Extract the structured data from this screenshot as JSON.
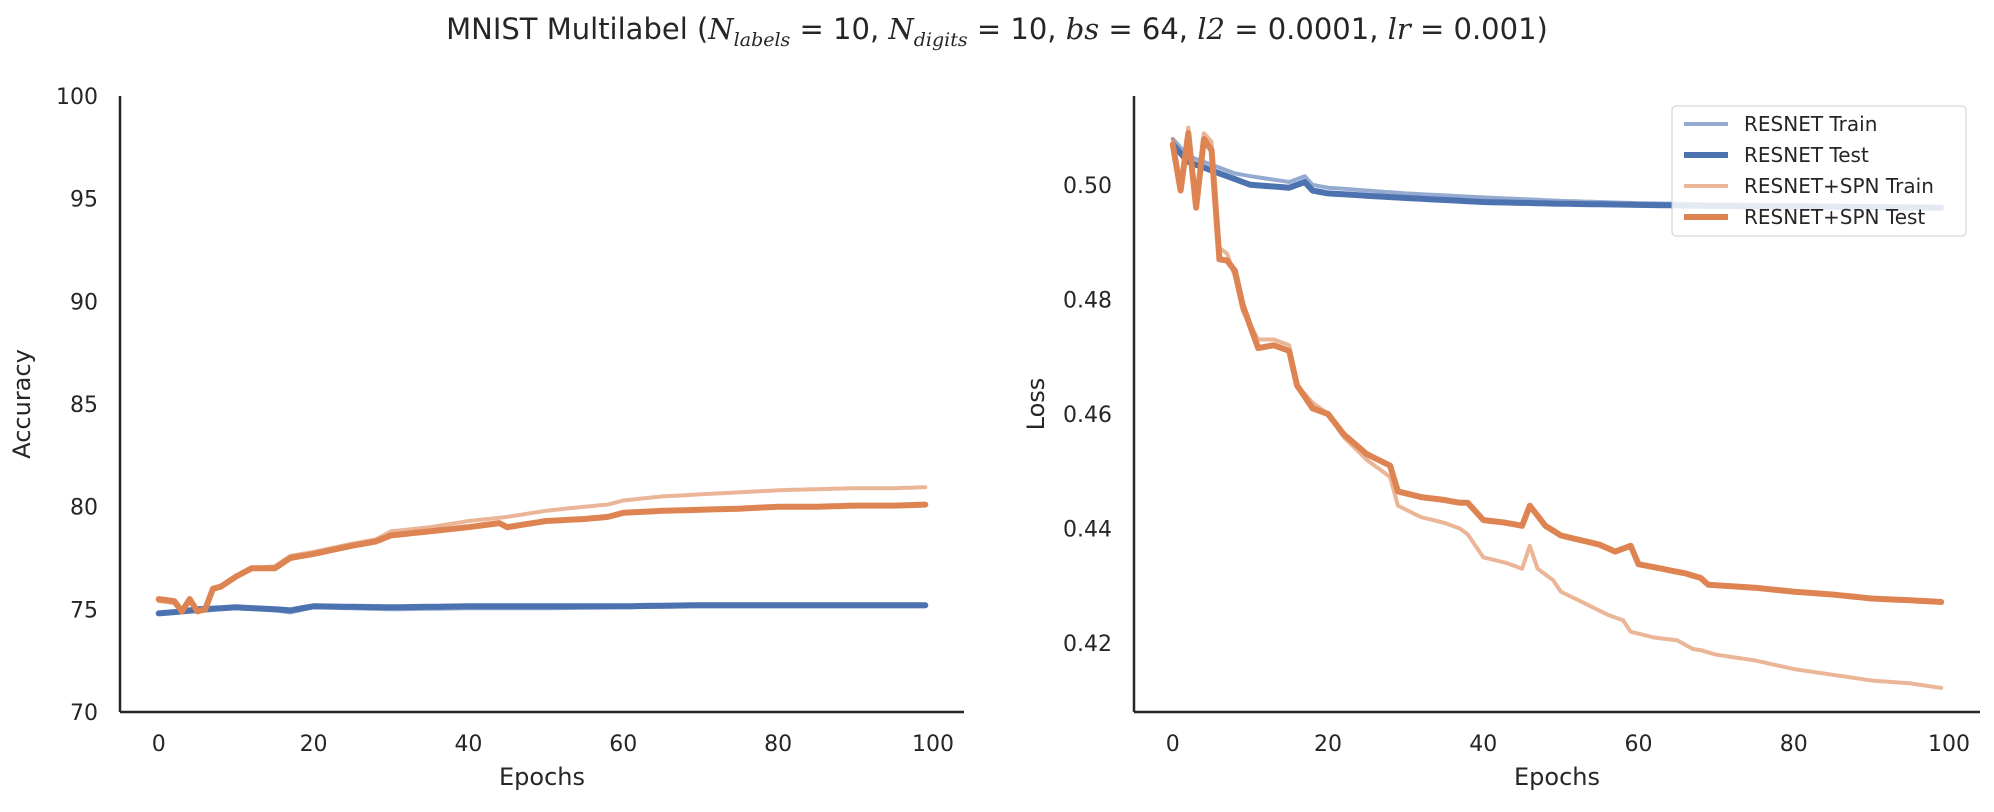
{
  "figure": {
    "suptitle": {
      "prefix": "MNIST Multilabel (",
      "suffix": ")",
      "params": [
        {
          "sym": "N",
          "sub": "labels",
          "value": "10"
        },
        {
          "sym": "N",
          "sub": "digits",
          "value": "10"
        },
        {
          "sym": "bs",
          "sub": "",
          "value": "64"
        },
        {
          "sym": "l2",
          "sub": "",
          "value": "0.0001"
        },
        {
          "sym": "lr",
          "sub": "",
          "value": "0.001"
        }
      ]
    }
  },
  "chart_data": [
    {
      "type": "line",
      "xlabel": "Epochs",
      "ylabel": "Accuracy",
      "xlim": [
        -5,
        104
      ],
      "ylim": [
        70,
        100
      ],
      "xticks": [
        0,
        20,
        40,
        60,
        80,
        100
      ],
      "yticks": [
        70,
        75,
        80,
        85,
        90,
        95,
        100
      ],
      "legend": "none",
      "grid": false,
      "colors": {
        "blue": "#4c72b0",
        "orange": "#dd8452"
      },
      "series": [
        {
          "name": "RESNET Train",
          "color": "#4c72b0",
          "style": "train",
          "anchors": [
            [
              0,
              74.8
            ],
            [
              3,
              74.85
            ],
            [
              5,
              74.9
            ],
            [
              8,
              75.0
            ],
            [
              10,
              75.05
            ],
            [
              15,
              74.95
            ],
            [
              17,
              74.85
            ],
            [
              20,
              75.1
            ],
            [
              30,
              75.0
            ],
            [
              40,
              75.05
            ],
            [
              50,
              75.05
            ],
            [
              60,
              75.1
            ],
            [
              70,
              75.15
            ],
            [
              80,
              75.15
            ],
            [
              90,
              75.15
            ],
            [
              99,
              75.15
            ]
          ]
        },
        {
          "name": "RESNET Test",
          "color": "#4c72b0",
          "style": "test",
          "anchors": [
            [
              0,
              74.8
            ],
            [
              3,
              74.9
            ],
            [
              5,
              75.0
            ],
            [
              8,
              75.05
            ],
            [
              10,
              75.1
            ],
            [
              15,
              75.0
            ],
            [
              17,
              74.95
            ],
            [
              20,
              75.15
            ],
            [
              30,
              75.1
            ],
            [
              40,
              75.15
            ],
            [
              50,
              75.15
            ],
            [
              60,
              75.15
            ],
            [
              70,
              75.2
            ],
            [
              80,
              75.2
            ],
            [
              90,
              75.2
            ],
            [
              99,
              75.2
            ]
          ]
        },
        {
          "name": "RESNET+SPN Train",
          "color": "#dd8452",
          "style": "train",
          "anchors": [
            [
              0,
              75.4
            ],
            [
              2,
              75.3
            ],
            [
              3,
              74.9
            ],
            [
              4,
              75.4
            ],
            [
              5,
              74.9
            ],
            [
              6,
              75.0
            ],
            [
              7,
              76.0
            ],
            [
              8,
              76.1
            ],
            [
              10,
              76.6
            ],
            [
              12,
              77.0
            ],
            [
              15,
              77.1
            ],
            [
              17,
              77.6
            ],
            [
              20,
              77.8
            ],
            [
              25,
              78.2
            ],
            [
              28,
              78.4
            ],
            [
              30,
              78.8
            ],
            [
              35,
              79.0
            ],
            [
              40,
              79.3
            ],
            [
              45,
              79.5
            ],
            [
              50,
              79.8
            ],
            [
              55,
              80.0
            ],
            [
              58,
              80.1
            ],
            [
              60,
              80.3
            ],
            [
              65,
              80.5
            ],
            [
              70,
              80.6
            ],
            [
              75,
              80.7
            ],
            [
              80,
              80.8
            ],
            [
              85,
              80.85
            ],
            [
              90,
              80.9
            ],
            [
              95,
              80.9
            ],
            [
              99,
              80.95
            ]
          ]
        },
        {
          "name": "RESNET+SPN Test",
          "color": "#dd8452",
          "style": "test",
          "anchors": [
            [
              0,
              75.5
            ],
            [
              2,
              75.4
            ],
            [
              3,
              74.9
            ],
            [
              4,
              75.5
            ],
            [
              5,
              74.9
            ],
            [
              6,
              75.0
            ],
            [
              7,
              76.0
            ],
            [
              8,
              76.1
            ],
            [
              10,
              76.6
            ],
            [
              12,
              77.0
            ],
            [
              15,
              77.0
            ],
            [
              17,
              77.5
            ],
            [
              20,
              77.7
            ],
            [
              25,
              78.1
            ],
            [
              28,
              78.3
            ],
            [
              30,
              78.6
            ],
            [
              35,
              78.8
            ],
            [
              40,
              79.0
            ],
            [
              44,
              79.2
            ],
            [
              45,
              79.0
            ],
            [
              50,
              79.3
            ],
            [
              55,
              79.4
            ],
            [
              58,
              79.5
            ],
            [
              60,
              79.7
            ],
            [
              65,
              79.8
            ],
            [
              70,
              79.85
            ],
            [
              75,
              79.9
            ],
            [
              80,
              80.0
            ],
            [
              85,
              80.0
            ],
            [
              90,
              80.05
            ],
            [
              95,
              80.05
            ],
            [
              99,
              80.1
            ]
          ]
        }
      ]
    },
    {
      "type": "line",
      "xlabel": "Epochs",
      "ylabel": "Loss",
      "xlim": [
        -5,
        104
      ],
      "ylim": [
        0.408,
        0.5155
      ],
      "xticks": [
        0,
        20,
        40,
        60,
        80,
        100
      ],
      "yticks": [
        0.42,
        0.44,
        0.46,
        0.48,
        0.5
      ],
      "ytick_labels": [
        "0.42",
        "0.44",
        "0.46",
        "0.48",
        "0.50"
      ],
      "legend": "top-right",
      "grid": false,
      "series": [
        {
          "name": "RESNET Train",
          "color": "#4c72b0",
          "style": "train",
          "anchors": [
            [
              0,
              0.508
            ],
            [
              2,
              0.505
            ],
            [
              4,
              0.504
            ],
            [
              6,
              0.503
            ],
            [
              8,
              0.502
            ],
            [
              10,
              0.5015
            ],
            [
              15,
              0.5005
            ],
            [
              17,
              0.5015
            ],
            [
              18,
              0.5
            ],
            [
              20,
              0.4995
            ],
            [
              30,
              0.4985
            ],
            [
              40,
              0.4978
            ],
            [
              50,
              0.4972
            ],
            [
              60,
              0.4968
            ],
            [
              70,
              0.4966
            ],
            [
              80,
              0.4965
            ],
            [
              90,
              0.4963
            ],
            [
              99,
              0.4962
            ]
          ]
        },
        {
          "name": "RESNET Test",
          "color": "#4c72b0",
          "style": "test",
          "anchors": [
            [
              0,
              0.507
            ],
            [
              2,
              0.504
            ],
            [
              4,
              0.503
            ],
            [
              6,
              0.502
            ],
            [
              8,
              0.501
            ],
            [
              10,
              0.5
            ],
            [
              15,
              0.4995
            ],
            [
              17,
              0.5005
            ],
            [
              18,
              0.499
            ],
            [
              20,
              0.4985
            ],
            [
              30,
              0.4977
            ],
            [
              40,
              0.497
            ],
            [
              50,
              0.4967
            ],
            [
              60,
              0.4965
            ],
            [
              70,
              0.4963
            ],
            [
              80,
              0.4962
            ],
            [
              90,
              0.4961
            ],
            [
              99,
              0.496
            ]
          ]
        },
        {
          "name": "RESNET+SPN Train",
          "color": "#dd8452",
          "style": "train",
          "anchors": [
            [
              0,
              0.508
            ],
            [
              1,
              0.5
            ],
            [
              2,
              0.51
            ],
            [
              3,
              0.497
            ],
            [
              4,
              0.509
            ],
            [
              5,
              0.5075
            ],
            [
              6,
              0.489
            ],
            [
              7,
              0.488
            ],
            [
              8,
              0.484
            ],
            [
              9,
              0.478
            ],
            [
              11,
              0.473
            ],
            [
              13,
              0.473
            ],
            [
              15,
              0.472
            ],
            [
              16,
              0.465
            ],
            [
              18,
              0.462
            ],
            [
              20,
              0.46
            ],
            [
              22,
              0.456
            ],
            [
              25,
              0.452
            ],
            [
              28,
              0.449
            ],
            [
              29,
              0.444
            ],
            [
              32,
              0.442
            ],
            [
              35,
              0.441
            ],
            [
              37,
              0.44
            ],
            [
              38,
              0.439
            ],
            [
              40,
              0.435
            ],
            [
              43,
              0.434
            ],
            [
              45,
              0.433
            ],
            [
              46,
              0.437
            ],
            [
              47,
              0.433
            ],
            [
              49,
              0.431
            ],
            [
              50,
              0.429
            ],
            [
              53,
              0.427
            ],
            [
              56,
              0.425
            ],
            [
              58,
              0.424
            ],
            [
              59,
              0.422
            ],
            [
              62,
              0.421
            ],
            [
              65,
              0.4205
            ],
            [
              67,
              0.419
            ],
            [
              68,
              0.4188
            ],
            [
              70,
              0.418
            ],
            [
              75,
              0.417
            ],
            [
              80,
              0.4155
            ],
            [
              85,
              0.4145
            ],
            [
              90,
              0.4135
            ],
            [
              95,
              0.413
            ],
            [
              99,
              0.4122
            ]
          ]
        },
        {
          "name": "RESNET+SPN Test",
          "color": "#dd8452",
          "style": "test",
          "anchors": [
            [
              0,
              0.507
            ],
            [
              1,
              0.499
            ],
            [
              2,
              0.509
            ],
            [
              3,
              0.496
            ],
            [
              4,
              0.508
            ],
            [
              5,
              0.506
            ],
            [
              6,
              0.487
            ],
            [
              7,
              0.4868
            ],
            [
              8,
              0.485
            ],
            [
              9,
              0.479
            ],
            [
              11,
              0.4715
            ],
            [
              13,
              0.472
            ],
            [
              15,
              0.471
            ],
            [
              16,
              0.465
            ],
            [
              18,
              0.461
            ],
            [
              20,
              0.46
            ],
            [
              22,
              0.4565
            ],
            [
              25,
              0.453
            ],
            [
              28,
              0.451
            ],
            [
              29,
              0.4465
            ],
            [
              32,
              0.4455
            ],
            [
              35,
              0.445
            ],
            [
              37,
              0.4445
            ],
            [
              38,
              0.4445
            ],
            [
              40,
              0.4415
            ],
            [
              43,
              0.441
            ],
            [
              45,
              0.4405
            ],
            [
              46,
              0.444
            ],
            [
              48,
              0.4405
            ],
            [
              50,
              0.4388
            ],
            [
              55,
              0.4372
            ],
            [
              57,
              0.436
            ],
            [
              59,
              0.437
            ],
            [
              60,
              0.4338
            ],
            [
              63,
              0.433
            ],
            [
              66,
              0.4322
            ],
            [
              68,
              0.4314
            ],
            [
              69,
              0.4302
            ],
            [
              75,
              0.4297
            ],
            [
              80,
              0.429
            ],
            [
              85,
              0.4285
            ],
            [
              90,
              0.4278
            ],
            [
              95,
              0.4275
            ],
            [
              99,
              0.4272
            ]
          ]
        }
      ]
    }
  ]
}
